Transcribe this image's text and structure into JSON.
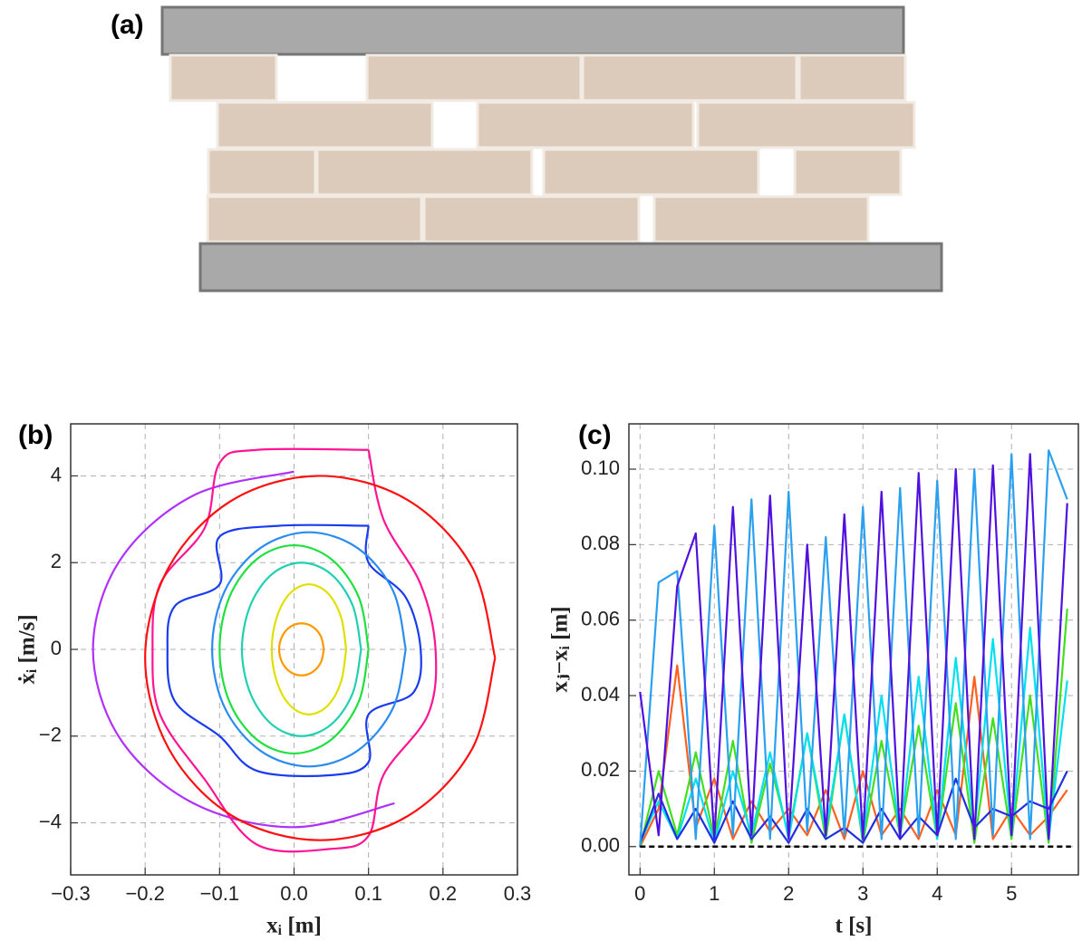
{
  "panel_a": {
    "label": "(a)"
  },
  "chart_data": [
    {
      "type": "line",
      "label": "(b)",
      "x_label": "xᵢ [m]",
      "y_label": "ẋᵢ [m/s]",
      "xlim": [
        -0.3,
        0.3
      ],
      "xticks": [
        {
          "value": -0.3,
          "label": "−0.3"
        },
        {
          "value": -0.2,
          "label": "−0.2"
        },
        {
          "value": -0.1,
          "label": "−0.1"
        },
        {
          "value": 0,
          "label": "0.0"
        },
        0.1,
        0.2,
        0.3
      ],
      "ylim": [
        -5.2,
        5.2
      ],
      "yticks": [
        {
          "value": -4,
          "label": "−4"
        },
        {
          "value": -2,
          "label": "−2"
        },
        0,
        2,
        4
      ],
      "grid": true,
      "series": [
        {
          "color": "#b030ff",
          "x": [
            0,
            -0.135,
            -0.234,
            -0.27,
            -0.234,
            -0.135,
            0,
            0.135
          ],
          "values": [
            4.1,
            3.55,
            2.05,
            0,
            -2.05,
            -3.55,
            -4.1,
            -3.55
          ]
        },
        {
          "color": "#ff1493",
          "x": [
            0.1,
            -0.05,
            -0.1,
            -0.12,
            -0.18,
            -0.19,
            -0.18,
            -0.12,
            -0.05,
            0.05,
            0.1,
            0.12,
            0.18,
            0.19,
            0.17,
            0.12,
            0.1
          ],
          "values": [
            4.6,
            4.6,
            4.3,
            2.8,
            1.5,
            0,
            -1.5,
            -3.0,
            -4.5,
            -4.6,
            -4.3,
            -2.9,
            -1.5,
            0,
            1.5,
            3.0,
            4.6
          ]
        },
        {
          "color": "#ff1010",
          "x": [
            0.27,
            0.239,
            0.153,
            0.035,
            -0.083,
            -0.168,
            -0.2,
            -0.168,
            -0.083,
            0.035,
            0.153,
            0.239,
            0.27
          ],
          "values": [
            -0.2,
            1.9,
            3.44,
            4.0,
            3.44,
            1.9,
            -0.2,
            -2.3,
            -3.84,
            -4.4,
            -3.84,
            -2.3,
            -0.2
          ]
        },
        {
          "color": "#1a3cf0",
          "x": [
            0.1,
            -0.02,
            -0.1,
            -0.1,
            -0.16,
            -0.17,
            -0.16,
            -0.1,
            -0.05,
            0.05,
            0.1,
            0.1,
            0.16,
            0.17,
            0.15,
            0.1,
            0.1
          ],
          "values": [
            2.85,
            2.85,
            2.6,
            1.5,
            1.0,
            0,
            -1.2,
            -2.0,
            -2.8,
            -2.9,
            -2.6,
            -1.5,
            -1.0,
            0,
            1.2,
            2.0,
            2.85
          ]
        },
        {
          "color": "#2a8cf0",
          "x": [
            0.15,
            0.133,
            0.085,
            0.02,
            -0.045,
            -0.093,
            -0.11,
            -0.093,
            -0.045,
            0.02,
            0.085,
            0.133,
            0.15
          ],
          "values": [
            0,
            1.35,
            2.34,
            2.7,
            2.34,
            1.35,
            0,
            -1.35,
            -2.34,
            -2.7,
            -2.34,
            -1.35,
            0
          ]
        },
        {
          "color": "#20e040",
          "x": [
            0.1,
            0.087,
            0.05,
            0,
            -0.05,
            -0.087,
            -0.1,
            -0.087,
            -0.05,
            0,
            0.05,
            0.087,
            0.1
          ],
          "values": [
            0,
            1.2,
            2.08,
            2.4,
            2.08,
            1.2,
            0,
            -1.2,
            -2.08,
            -2.4,
            -2.08,
            -1.2,
            0
          ]
        },
        {
          "color": "#20d0b0",
          "x": [
            0.09,
            0.079,
            0.05,
            0.01,
            -0.03,
            -0.059,
            -0.07,
            -0.059,
            -0.03,
            0.01,
            0.05,
            0.079,
            0.09
          ],
          "values": [
            0,
            1,
            1.73,
            2,
            1.73,
            1,
            0,
            -1,
            -1.73,
            -2,
            -1.73,
            -1,
            0
          ]
        },
        {
          "color": "#e0e000",
          "x": [
            0.07,
            0.063,
            0.045,
            0.02,
            -0.005,
            -0.023,
            -0.03,
            -0.023,
            -0.005,
            0.02,
            0.045,
            0.063,
            0.07
          ],
          "values": [
            0,
            0.75,
            1.3,
            1.5,
            1.3,
            0.75,
            0,
            -0.75,
            -1.3,
            -1.5,
            -1.3,
            -0.75,
            0
          ]
        },
        {
          "color": "#ff9900",
          "x": [
            0.04,
            0.036,
            0.025,
            0.01,
            -0.005,
            -0.016,
            -0.02,
            -0.016,
            -0.005,
            0.01,
            0.025,
            0.036,
            0.04
          ],
          "values": [
            0,
            0.3,
            0.52,
            0.6,
            0.52,
            0.3,
            0,
            -0.3,
            -0.52,
            -0.6,
            -0.52,
            -0.3,
            0
          ]
        }
      ]
    },
    {
      "type": "line",
      "label": "(c)",
      "x_label": "t [s]",
      "y_label": "xⱼ−xᵢ [m]",
      "xlim": [
        -0.15,
        5.9
      ],
      "xticks": [
        0,
        1,
        2,
        3,
        4,
        5
      ],
      "ylim": [
        -0.0075,
        0.112
      ],
      "yticks": [
        {
          "value": 0,
          "label": "0.00"
        },
        0.02,
        0.04,
        0.06,
        0.08,
        {
          "value": 0.1,
          "label": "0.10"
        }
      ],
      "grid": true,
      "series": [
        {
          "color": "#ff6020",
          "x": [
            0,
            0.25,
            0.5,
            0.75,
            1,
            1.25,
            1.5,
            1.75,
            2,
            2.25,
            2.5,
            2.75,
            3,
            3.25,
            3.5,
            3.75,
            4,
            4.25,
            4.5,
            4.75,
            5,
            5.25,
            5.5,
            5.75
          ],
          "values": [
            0,
            0.01,
            0.048,
            0.005,
            0.018,
            0.002,
            0.012,
            0.004,
            0.01,
            0.003,
            0.015,
            0.002,
            0.02,
            0.003,
            0.01,
            0.002,
            0.015,
            0.003,
            0.045,
            0.002,
            0.01,
            0.003,
            0.008,
            0.015
          ]
        },
        {
          "color": "#40e020",
          "x": [
            0,
            0.25,
            0.5,
            0.75,
            1,
            1.25,
            1.5,
            1.75,
            2,
            2.25,
            2.5,
            2.75,
            3,
            3.25,
            3.5,
            3.75,
            4,
            4.25,
            4.5,
            4.75,
            5,
            5.25,
            5.5,
            5.75
          ],
          "values": [
            0,
            0.02,
            0.003,
            0.025,
            0.002,
            0.028,
            0.001,
            0.022,
            0.003,
            0.03,
            0.002,
            0.035,
            0.001,
            0.028,
            0.003,
            0.032,
            0.002,
            0.038,
            0.001,
            0.034,
            0.002,
            0.04,
            0.001,
            0.063
          ]
        },
        {
          "color": "#00e0f0",
          "x": [
            0,
            0.25,
            0.5,
            0.75,
            1,
            1.25,
            1.5,
            1.75,
            2,
            2.25,
            2.5,
            2.75,
            3,
            3.25,
            3.5,
            3.75,
            4,
            4.25,
            4.5,
            4.75,
            5,
            5.25,
            5.5,
            5.75
          ],
          "values": [
            0.001,
            0.012,
            0.002,
            0.018,
            0.001,
            0.02,
            0.003,
            0.025,
            0.002,
            0.03,
            0.004,
            0.035,
            0.002,
            0.04,
            0.003,
            0.045,
            0.002,
            0.05,
            0.004,
            0.055,
            0.003,
            0.058,
            0.002,
            0.044
          ]
        },
        {
          "color": "#2030e0",
          "x": [
            0,
            0.25,
            0.5,
            0.75,
            1,
            1.25,
            1.5,
            1.75,
            2,
            2.25,
            2.5,
            2.75,
            3,
            3.25,
            3.5,
            3.75,
            4,
            4.25,
            4.5,
            4.75,
            5,
            5.25,
            5.5,
            5.75
          ],
          "values": [
            0.001,
            0.014,
            0.002,
            0.01,
            0.001,
            0.012,
            0.002,
            0.008,
            0.001,
            0.01,
            0.002,
            0.005,
            0.001,
            0.01,
            0.002,
            0.008,
            0.003,
            0.018,
            0.005,
            0.01,
            0.008,
            0.012,
            0.01,
            0.02
          ]
        },
        {
          "color": "#2aa0f0",
          "x": [
            0,
            0.25,
            0.5,
            0.75,
            1,
            1.25,
            1.5,
            1.75,
            2,
            2.25,
            2.5,
            2.75,
            3,
            3.25,
            3.5,
            3.75,
            4,
            4.25,
            4.5,
            4.75,
            5,
            5.25,
            5.5,
            5.75
          ],
          "values": [
            0,
            0.07,
            0.073,
            0.002,
            0.085,
            0.003,
            0.092,
            0.002,
            0.094,
            0.004,
            0.082,
            0.003,
            0.09,
            0.002,
            0.095,
            0.003,
            0.097,
            0.002,
            0.1,
            0.003,
            0.104,
            0.002,
            0.105,
            0.092
          ]
        },
        {
          "color": "#5010e0",
          "x": [
            0,
            0.25,
            0.5,
            0.75,
            1,
            1.25,
            1.5,
            1.75,
            2,
            2.25,
            2.5,
            2.75,
            3,
            3.25,
            3.5,
            3.75,
            4,
            4.25,
            4.5,
            4.75,
            5,
            5.25,
            5.5,
            5.75
          ],
          "values": [
            0.041,
            0.003,
            0.069,
            0.083,
            0.002,
            0.09,
            0.003,
            0.093,
            0.002,
            0.08,
            0.003,
            0.088,
            0.002,
            0.094,
            0.002,
            0.099,
            0.003,
            0.1,
            0.002,
            0.101,
            0.003,
            0.104,
            0.002,
            0.091
          ]
        },
        {
          "color": "#000000",
          "dashed": true,
          "x": [
            0,
            5.8
          ],
          "values": [
            0,
            0
          ]
        }
      ]
    }
  ]
}
